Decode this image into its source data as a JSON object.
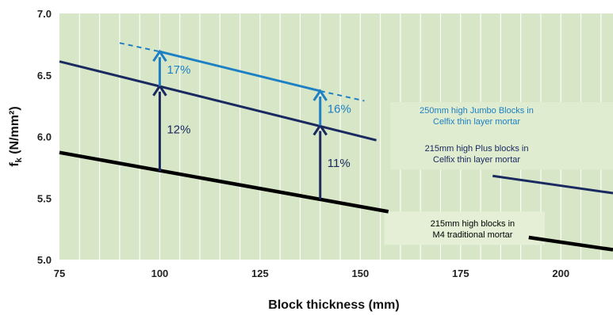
{
  "chart_data": {
    "type": "line",
    "xlabel": "Block thickness (mm)",
    "ylabel_main": "f",
    "ylabel_sub": "k",
    "ylabel_unit": " (N/mm²)",
    "xlim": [
      75,
      213
    ],
    "ylim": [
      5.0,
      7.0
    ],
    "x_ticks": [
      {
        "value": 75,
        "label": "75"
      },
      {
        "value": 100,
        "label": "100"
      },
      {
        "value": 125,
        "label": "125"
      },
      {
        "value": 150,
        "label": "150"
      },
      {
        "value": 175,
        "label": "175"
      },
      {
        "value": 200,
        "label": "200"
      }
    ],
    "y_ticks": [
      {
        "value": 5.0,
        "label": "5.0"
      },
      {
        "value": 5.5,
        "label": "5.5"
      },
      {
        "value": 6.0,
        "label": "6.0"
      },
      {
        "value": 6.5,
        "label": "6.5"
      },
      {
        "value": 7.0,
        "label": "7.0"
      }
    ],
    "grid": "vertical",
    "series": [
      {
        "name": "215mm high blocks in M4 traditional mortar",
        "color": "#000000",
        "segments": [
          [
            [
              75,
              5.87
            ],
            [
              157,
              5.39
            ]
          ],
          [
            [
              192,
              5.18
            ],
            [
              213,
              5.08
            ]
          ]
        ]
      },
      {
        "name": "215mm high Plus blocks in Celfix thin layer mortar",
        "color": "#1a2a60",
        "segments": [
          [
            [
              75,
              6.61
            ],
            [
              154,
              5.97
            ]
          ],
          [
            [
              183,
              5.68
            ],
            [
              213,
              5.54
            ]
          ]
        ]
      },
      {
        "name": "250mm high Jumbo Blocks in Celfix thin layer mortar",
        "color": "#1d7fc4",
        "segments": [
          [
            [
              100,
              6.69
            ],
            [
              140,
              6.37
            ]
          ]
        ],
        "dashed_segments": [
          [
            [
              90,
              6.76
            ],
            [
              100,
              6.69
            ]
          ],
          [
            [
              140,
              6.37
            ],
            [
              151,
              6.29
            ]
          ]
        ]
      }
    ],
    "annotations": [
      {
        "text": "12%",
        "x": 100,
        "y_from": 5.72,
        "y_to": 6.41,
        "color": "#1a2a60"
      },
      {
        "text": "17%",
        "x": 100,
        "y_from": 6.41,
        "y_to": 6.69,
        "color": "#1d7fc4"
      },
      {
        "text": "11%",
        "x": 140,
        "y_from": 5.49,
        "y_to": 6.09,
        "color": "#1a2a60"
      },
      {
        "text": "16%",
        "x": 140,
        "y_from": 6.09,
        "y_to": 6.37,
        "color": "#1d7fc4"
      }
    ],
    "series_labels": [
      {
        "lines": [
          "250mm high Jumbo Blocks in",
          "Celfix thin layer mortar"
        ],
        "x": 179,
        "y": 6.19,
        "color": "#1d7fc4"
      },
      {
        "lines": [
          "215mm high Plus blocks in",
          "Celfix thin layer mortar"
        ],
        "x": 179,
        "y": 5.88,
        "color": "#1a2a60"
      },
      {
        "lines": [
          "215mm high blocks in",
          "M4 traditional mortar"
        ],
        "x": 178,
        "y": 5.27,
        "color": "#000000"
      }
    ]
  }
}
